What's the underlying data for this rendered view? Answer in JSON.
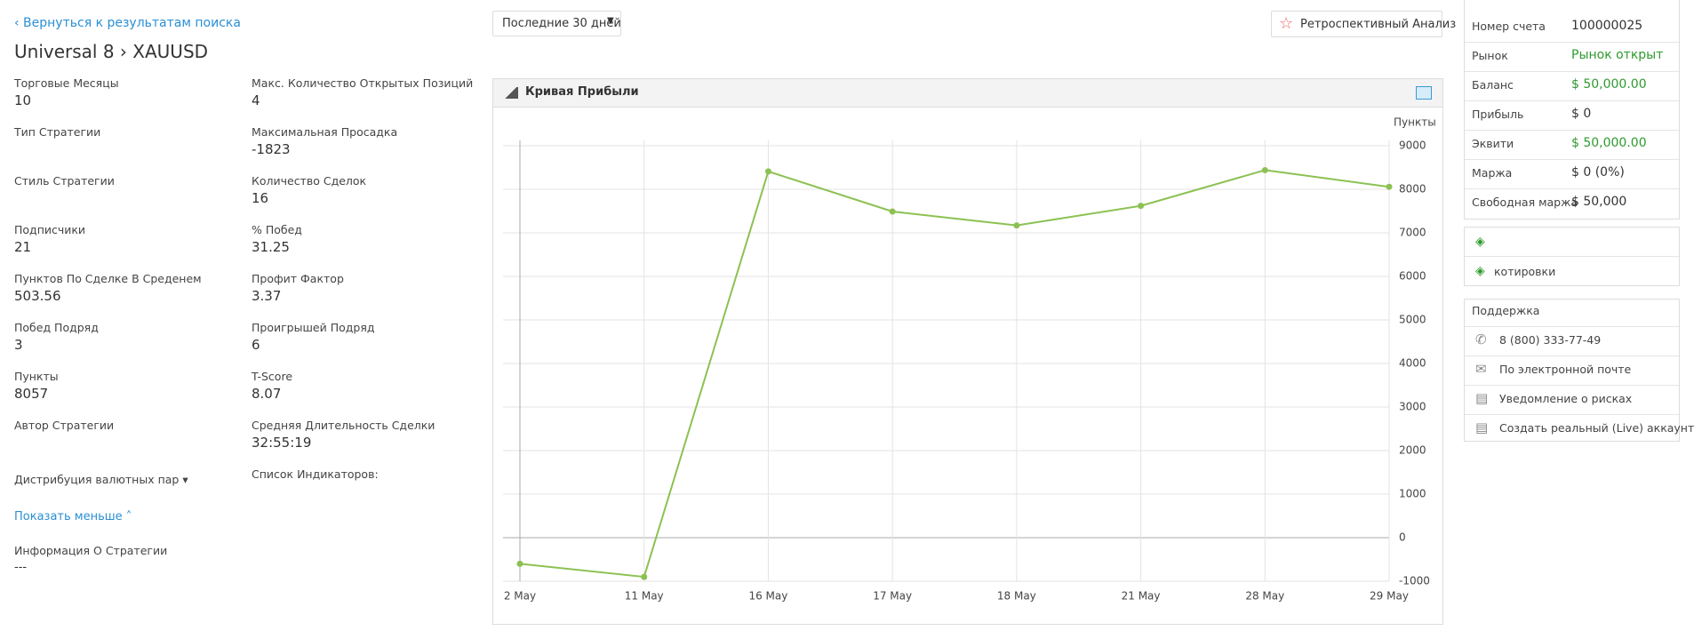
{
  "nav": {
    "back_link": "‹ Вернуться к результатам поиска",
    "title": "Universal 8",
    "symbol": "› XAUUSD"
  },
  "stats_left": [
    {
      "label": "Торговые Месяцы",
      "value": "10"
    },
    {
      "label": "Тип Стратегии"
    },
    {
      "label": "Стиль Стратегии"
    },
    {
      "label": "Подписчики",
      "value": "21"
    },
    {
      "label": "Пунктов По Сделке В Среденем",
      "value": "503.56"
    },
    {
      "label": "Побед Подряд",
      "value": "3"
    },
    {
      "label": "Пункты",
      "value": "8057"
    },
    {
      "label": "Автор Стратегии"
    }
  ],
  "stats_right": [
    {
      "label": "Макс. Количество Открытых Позиций",
      "value": "4"
    },
    {
      "label": "Максимальная Просадка",
      "value": "-1823"
    },
    {
      "label": "Количество Сделок",
      "value": "16"
    },
    {
      "label": "% Побед",
      "value": "31.25"
    },
    {
      "label": "Профит Фактор",
      "value": "3.37"
    },
    {
      "label": "Проигрышей Подряд",
      "value": "6"
    },
    {
      "label": "T-Score",
      "value": "8.07"
    },
    {
      "label": "Средняя Длительность Сделки",
      "value": "32:55:19"
    }
  ],
  "distribution": "Дистрибуция валютных пар",
  "indicators": "Список Индикаторов:",
  "show_less": "Показать меньше",
  "info": {
    "label": "Информация О Стратегии",
    "value": "---"
  },
  "controls": {
    "period": "Последние 30 дней",
    "backtest": "Ретроспективный Анализ"
  },
  "chart_data": {
    "type": "line",
    "title": "Кривая Прибыли",
    "y_label": "Пункты",
    "categories": [
      "2 May",
      "11 May",
      "16 May",
      "17 May",
      "18 May",
      "21 May",
      "28 May",
      "29 May"
    ],
    "series": [
      {
        "color": "#8cc152",
        "values": [
          -600,
          -900,
          8410,
          7490,
          7170,
          7620,
          8440,
          8057
        ]
      }
    ],
    "ylim": [
      -1000,
      9000
    ],
    "yticks": [
      -1000,
      0,
      1000,
      2000,
      3000,
      4000,
      5000,
      6000,
      7000,
      8000,
      9000
    ],
    "grid": true
  },
  "account": [
    {
      "label": "Номер счета",
      "value": "100000025"
    },
    {
      "label": "Рынок",
      "value": "Рынок открыт",
      "highlight": true
    },
    {
      "label": "Баланс",
      "value": "$ 50,000.00",
      "highlight": true
    },
    {
      "label": "Прибыль",
      "value": "$ 0"
    },
    {
      "label": "Эквити",
      "value": "$ 50,000.00",
      "highlight": true
    },
    {
      "label": "Маржа",
      "value": "$ 0 (0%)"
    },
    {
      "label": "Свободная маржа",
      "value": "$ 50,000"
    }
  ],
  "quotes": "котировки",
  "support": {
    "title": "Поддержка",
    "items": [
      "8 (800) 333-77-49",
      "По электронной почте",
      "Уведомление о рисках",
      "Создать реальный (Live) аккаунт"
    ]
  }
}
